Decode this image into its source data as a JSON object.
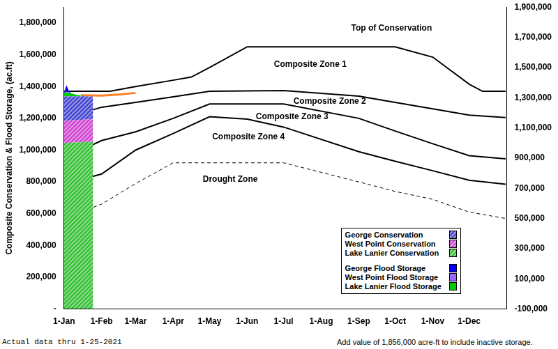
{
  "chart_data": {
    "type": "line",
    "y_label": "Composite Conservation & Flood Storage, (ac.ft)",
    "xlim": [
      0,
      365
    ],
    "xticks": [
      {
        "value": 0,
        "label": "1-Jan"
      },
      {
        "value": 31,
        "label": "1-Feb"
      },
      {
        "value": 59,
        "label": "1-Mar"
      },
      {
        "value": 90,
        "label": "1-Apr"
      },
      {
        "value": 120,
        "label": "1-May"
      },
      {
        "value": 151,
        "label": "1-Jun"
      },
      {
        "value": 181,
        "label": "1-Jul"
      },
      {
        "value": 212,
        "label": "1-Aug"
      },
      {
        "value": 243,
        "label": "1-Sep"
      },
      {
        "value": 273,
        "label": "1-Oct"
      },
      {
        "value": 304,
        "label": "1-Nov"
      },
      {
        "value": 334,
        "label": "1-Dec"
      }
    ],
    "ylim": [
      0,
      1900000
    ],
    "yticks": [
      {
        "value": 0,
        "label": "-"
      },
      {
        "value": 200000,
        "label": "200,000"
      },
      {
        "value": 400000,
        "label": "400,000"
      },
      {
        "value": 600000,
        "label": "600,000"
      },
      {
        "value": 800000,
        "label": "800,000"
      },
      {
        "value": 1000000,
        "label": "1,000,000"
      },
      {
        "value": 1200000,
        "label": "1,200,000"
      },
      {
        "value": 1400000,
        "label": "1,400,000"
      },
      {
        "value": 1600000,
        "label": "1,600,000"
      },
      {
        "value": 1800000,
        "label": "1,800,000"
      }
    ],
    "y2lim": [
      -100000,
      1900000
    ],
    "y2ticks": [
      {
        "value": -100000,
        "label": "-100,000"
      },
      {
        "value": 100000,
        "label": "100,000"
      },
      {
        "value": 300000,
        "label": "300,000"
      },
      {
        "value": 500000,
        "label": "500,000"
      },
      {
        "value": 700000,
        "label": "700,000"
      },
      {
        "value": 900000,
        "label": "900,000"
      },
      {
        "value": 1100000,
        "label": "1,100,000"
      },
      {
        "value": 1300000,
        "label": "1,300,000"
      },
      {
        "value": 1500000,
        "label": "1,500,000"
      },
      {
        "value": 1700000,
        "label": "1,700,000"
      },
      {
        "value": 1900000,
        "label": "1,900,000"
      }
    ],
    "grid": false,
    "legend": "lower right",
    "series": [
      {
        "name": "George Conservation",
        "type": "area",
        "stacked": true,
        "color": "#3333cc",
        "x": [
          0,
          2,
          4,
          6,
          8,
          10,
          12,
          14,
          16,
          18,
          20,
          22,
          24
        ],
        "values": [
          155000,
          154000,
          153000,
          152000,
          151000,
          150000,
          149000,
          148000,
          147000,
          146000,
          145000,
          144000,
          143000
        ]
      },
      {
        "name": "West Point Conservation",
        "type": "area",
        "stacked": true,
        "color": "#cc33cc",
        "x": [
          0,
          2,
          4,
          6,
          8,
          10,
          12,
          14,
          16,
          18,
          20,
          22,
          24
        ],
        "values": [
          138000,
          139000,
          139000,
          140000,
          140000,
          141000,
          141000,
          141000,
          142000,
          142000,
          142000,
          142000,
          142000
        ]
      },
      {
        "name": "Lake Lanier Conservation",
        "type": "area",
        "stacked": true,
        "color": "#22bb22",
        "x": [
          0,
          2,
          4,
          6,
          8,
          10,
          12,
          14,
          16,
          18,
          20,
          22,
          24
        ],
        "values": [
          1045000,
          1046000,
          1046000,
          1047000,
          1048000,
          1048000,
          1049000,
          1050000,
          1050000,
          1051000,
          1051000,
          1052000,
          1052000
        ]
      },
      {
        "name": "George Flood Storage",
        "type": "area",
        "stacked": true,
        "color": "#0000ff",
        "x": [
          0,
          2,
          4,
          6,
          8,
          10,
          12,
          14,
          16,
          18,
          20,
          22,
          24
        ],
        "values": [
          0,
          40000,
          10000,
          0,
          0,
          0,
          0,
          0,
          0,
          0,
          0,
          0,
          0
        ]
      },
      {
        "name": "West Point Flood Storage",
        "type": "area",
        "stacked": true,
        "color": "#9966ff",
        "x": [
          0,
          2,
          4,
          6,
          8,
          10,
          12,
          14,
          16,
          18,
          20,
          22,
          24
        ],
        "values": [
          0,
          5000,
          3000,
          0,
          0,
          0,
          0,
          0,
          0,
          0,
          0,
          0,
          0
        ]
      },
      {
        "name": "Lake Lanier Flood Storage",
        "type": "area",
        "stacked": true,
        "color": "#00cc00",
        "x": [
          0,
          2,
          4,
          6,
          8,
          10,
          12,
          14,
          16,
          18,
          20,
          22,
          24
        ],
        "values": [
          20000,
          25000,
          22000,
          18000,
          14000,
          10000,
          7000,
          4000,
          2000,
          0,
          0,
          0,
          0
        ]
      },
      {
        "type": "line",
        "color": "#000000",
        "line_style": "solid",
        "x": [
          0,
          38,
          59,
          90,
          105,
          120,
          151,
          273,
          304,
          334,
          345,
          364
        ],
        "values": [
          1370000,
          1370000,
          1400000,
          1440000,
          1460000,
          1520000,
          1650000,
          1650000,
          1585000,
          1415000,
          1370000,
          1370000
        ]
      },
      {
        "type": "line",
        "color": "#000000",
        "line_style": "solid",
        "x": [
          0,
          31,
          59,
          90,
          120,
          181,
          243,
          273,
          304,
          334,
          364
        ],
        "values": [
          1200000,
          1270000,
          1300000,
          1335000,
          1370000,
          1375000,
          1340000,
          1300000,
          1260000,
          1220000,
          1205000
        ]
      },
      {
        "type": "line",
        "color": "#000000",
        "line_style": "solid",
        "x": [
          0,
          31,
          59,
          90,
          120,
          181,
          243,
          273,
          304,
          334,
          364
        ],
        "values": [
          950000,
          1060000,
          1115000,
          1200000,
          1290000,
          1290000,
          1200000,
          1120000,
          1040000,
          965000,
          945000
        ]
      },
      {
        "type": "line",
        "color": "#000000",
        "line_style": "solid",
        "x": [
          0,
          31,
          59,
          90,
          120,
          151,
          181,
          243,
          273,
          304,
          334,
          364
        ],
        "values": [
          785000,
          850000,
          1000000,
          1105000,
          1210000,
          1195000,
          1145000,
          990000,
          930000,
          870000,
          810000,
          785000
        ]
      },
      {
        "type": "line",
        "color": "#000000",
        "line_style": "dashed",
        "x": [
          0,
          31,
          59,
          90,
          181,
          243,
          273,
          304,
          334,
          364
        ],
        "values": [
          570000,
          660000,
          790000,
          920000,
          920000,
          800000,
          740000,
          690000,
          610000,
          570000
        ]
      },
      {
        "type": "line",
        "color": "#ff7f27",
        "line_style": "solid",
        "x": [
          14,
          31,
          45,
          59
        ],
        "values": [
          1345000,
          1343000,
          1350000,
          1360000
        ]
      }
    ],
    "annotations": [
      {
        "text": "Top of Conservation",
        "x": 270,
        "y": 1766000
      },
      {
        "text": "Composite Zone 1",
        "x": 203,
        "y": 1540000
      },
      {
        "text": "Composite Zone 2",
        "x": 219,
        "y": 1308000
      },
      {
        "text": "Composite Zone 3",
        "x": 188,
        "y": 1210000
      },
      {
        "text": "Composite Zone 4",
        "x": 152,
        "y": 1083000
      },
      {
        "text": "Drought Zone",
        "x": 137,
        "y": 815000
      }
    ],
    "footnotes": [
      "Actual data thru 1-25-2021",
      "Add value of 1,856,000 acre-ft to include inactive storage."
    ]
  }
}
